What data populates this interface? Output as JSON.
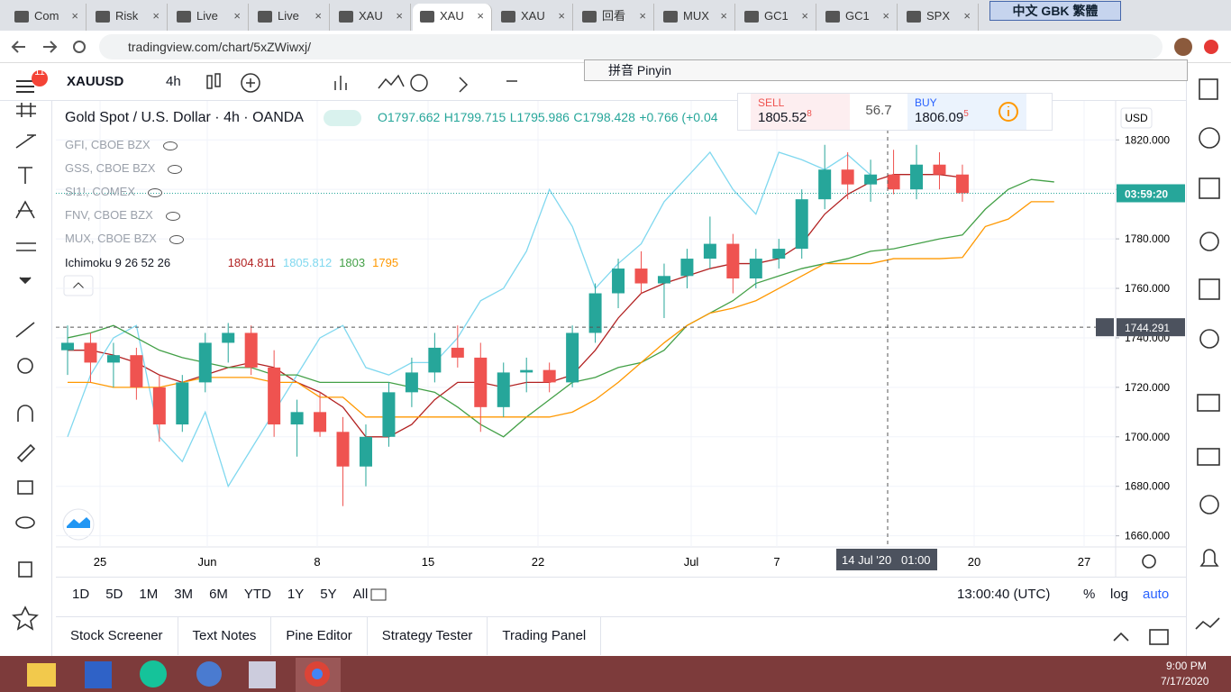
{
  "browser": {
    "tabs": [
      "Com",
      "Risk",
      "Live",
      "Live",
      "XAU",
      "XAU",
      "XAU",
      "回看",
      "MUX",
      "GC1",
      "GC1",
      "SPX"
    ],
    "ime": "中文 GBK 繁體",
    "url": "tradingview.com/chart/5xZWiwxj/",
    "pinyin": "拼音 Pinyin"
  },
  "toolbar": {
    "notifications": "11",
    "symbol": "XAUUSD",
    "interval": "4h"
  },
  "legend": {
    "title": "Gold Spot / U.S. Dollar · 4h · OANDA",
    "open": "O1797.662",
    "high": "H1799.715",
    "low": "L1795.986",
    "close": "C1798.428",
    "change": "+0.766 (+0.04",
    "compare": [
      "GFI, CBOE BZX",
      "GSS, CBOE BZX",
      "SI1!, COMEX",
      "FNV, CBOE BZX",
      "MUX, CBOE BZX"
    ],
    "indicator": "Ichimoku 9 26 52 26"
  },
  "trade": {
    "sell_label": "SELL",
    "sell_price": "1805.52",
    "sell_pip": "8",
    "spread": "56.7",
    "buy_label": "BUY",
    "buy_price": "1806.09",
    "buy_pip": "5"
  },
  "chart_data": {
    "type": "candlestick",
    "candles": {
      "up_color": "#26a69a",
      "down_color": "#ef5350",
      "open": [
        1735,
        1738,
        1730,
        1733,
        1720,
        1705,
        1722,
        1738,
        1742,
        1728,
        1705,
        1710,
        1702,
        1688,
        1700,
        1718,
        1726,
        1736,
        1732,
        1712,
        1726,
        1727,
        1722,
        1742,
        1758,
        1768,
        1762,
        1765,
        1772,
        1778,
        1764,
        1772,
        1776,
        1796,
        1808,
        1802,
        1806,
        1800,
        1810,
        1806
      ],
      "high": [
        1745,
        1742,
        1738,
        1736,
        1725,
        1725,
        1742,
        1746,
        1745,
        1735,
        1715,
        1718,
        1708,
        1705,
        1722,
        1732,
        1742,
        1745,
        1738,
        1730,
        1732,
        1730,
        1745,
        1762,
        1772,
        1775,
        1770,
        1776,
        1789,
        1782,
        1776,
        1780,
        1800,
        1818,
        1815,
        1812,
        1816,
        1818,
        1815,
        1810
      ],
      "low": [
        1725,
        1722,
        1720,
        1715,
        1698,
        1702,
        1718,
        1730,
        1725,
        1700,
        1692,
        1700,
        1672,
        1680,
        1696,
        1712,
        1722,
        1728,
        1702,
        1708,
        1718,
        1718,
        1720,
        1738,
        1752,
        1758,
        1748,
        1760,
        1768,
        1758,
        1760,
        1768,
        1772,
        1792,
        1796,
        1795,
        1798,
        1796,
        1800,
        1795
      ],
      "close": [
        1738,
        1730,
        1733,
        1720,
        1705,
        1722,
        1738,
        1742,
        1728,
        1705,
        1710,
        1702,
        1688,
        1700,
        1718,
        1726,
        1736,
        1732,
        1712,
        1726,
        1727,
        1722,
        1742,
        1758,
        1768,
        1762,
        1765,
        1772,
        1778,
        1764,
        1772,
        1776,
        1796,
        1808,
        1802,
        1806,
        1800,
        1810,
        1806,
        1798.428
      ]
    },
    "series": [
      {
        "color": "#b22222",
        "values": [
          1735,
          1735,
          1733,
          1730,
          1725,
          1722,
          1725,
          1728,
          1730,
          1728,
          1722,
          1718,
          1712,
          1700,
          1700,
          1705,
          1715,
          1722,
          1722,
          1720,
          1722,
          1722,
          1725,
          1735,
          1748,
          1758,
          1762,
          1765,
          1768,
          1770,
          1770,
          1772,
          1778,
          1790,
          1798,
          1803,
          1806,
          1806,
          1806,
          1804.811
        ]
      },
      {
        "color": "#80d8ef",
        "values": [
          1700,
          1725,
          1740,
          1745,
          1700,
          1690,
          1710,
          1680,
          1695,
          1710,
          1725,
          1740,
          1745,
          1728,
          1725,
          1730,
          1730,
          1740,
          1755,
          1760,
          1775,
          1800,
          1785,
          1760,
          1770,
          1778,
          1795,
          1805,
          1815,
          1800,
          1790,
          1815,
          1812,
          1808,
          1814,
          1805.812
        ]
      },
      {
        "color": "#43a047",
        "values": [
          1740,
          1742,
          1745,
          1740,
          1735,
          1732,
          1730,
          1728,
          1728,
          1725,
          1725,
          1722,
          1722,
          1722,
          1722,
          1720,
          1718,
          1712,
          1705,
          1700,
          1708,
          1715,
          1722,
          1724,
          1728,
          1730,
          1735,
          1745,
          1750,
          1755,
          1762,
          1765,
          1768,
          1770,
          1772,
          1775,
          1776,
          1778,
          1780,
          1781.571,
          1792,
          1800,
          1804,
          1803
        ]
      },
      {
        "color": "#ff9800",
        "values": [
          1722,
          1722,
          1720,
          1720,
          1720,
          1722,
          1724,
          1724,
          1724,
          1722,
          1722,
          1716,
          1716,
          1708,
          1708,
          1708,
          1708,
          1708,
          1708,
          1708,
          1708,
          1708,
          1710,
          1715,
          1722,
          1730,
          1738,
          1745,
          1750,
          1752,
          1755,
          1760,
          1765,
          1770,
          1770,
          1770,
          1772,
          1772,
          1772,
          1772.494,
          1785,
          1788,
          1795,
          1795
        ]
      }
    ],
    "ylim": [
      1655.5,
      1835.75
    ],
    "yticks": [
      {
        "value": 1660,
        "label": "1660.000"
      },
      {
        "value": 1680,
        "label": "1680.000"
      },
      {
        "value": 1700,
        "label": "1700.000"
      },
      {
        "value": 1720,
        "label": "1720.000"
      },
      {
        "value": 1740,
        "label": "1740.000"
      },
      {
        "value": 1760,
        "label": "1760.000"
      },
      {
        "value": 1780,
        "label": "1780.000"
      },
      {
        "value": 1800,
        "label": "1800.000"
      },
      {
        "value": 1820,
        "label": "1820.000"
      }
    ],
    "grid": true,
    "currency": "USD",
    "countdown": "03:59:20",
    "crosshair": 1744.291,
    "xlabels": [
      "25",
      "Jun",
      "8",
      "15",
      "22",
      "Jul",
      "7",
      "20",
      "27"
    ],
    "cursor_date": "14 Jul '20",
    "cursor_time": "01:00"
  },
  "bottom": {
    "ranges": [
      "1D",
      "5D",
      "1M",
      "3M",
      "6M",
      "YTD",
      "1Y",
      "5Y",
      "All"
    ],
    "time": "13:00:40 (UTC)",
    "percent": "%",
    "log": "log",
    "auto": "auto",
    "tabs": [
      "Stock Screener",
      "Text Notes",
      "Pine Editor",
      "Strategy Tester",
      "Trading Panel"
    ]
  },
  "taskbar": {
    "time": "9:00 PM",
    "date": "7/17/2020"
  }
}
